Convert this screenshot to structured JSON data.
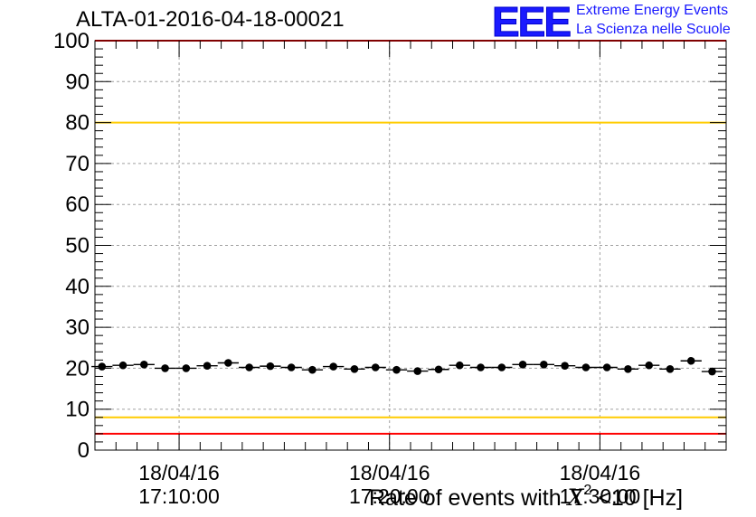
{
  "header": {
    "title": "ALTA-01-2016-04-18-00021",
    "logo_text": "EEE",
    "logo_line1": "Extreme Energy Events",
    "logo_line2": "La Scienza nelle Scuole"
  },
  "colors": {
    "upper_limit_line": "#ff0000",
    "lower_limit_line": "#ff0000",
    "upper_warning_line": "#ffcc00",
    "lower_warning_line": "#ffcc00",
    "markers": "#000000",
    "logo": "#1a1aff"
  },
  "chart_data": {
    "type": "scatter",
    "title": "ALTA-01-2016-04-18-00021",
    "xlabel_prefix": "Rate of events with ",
    "xlabel_symbol": "X",
    "xlabel_exp": "2",
    "xlabel_suffix": " <10 [Hz]",
    "ylabel": "",
    "ylim": [
      0,
      100
    ],
    "yticks": [
      0,
      10,
      20,
      30,
      40,
      50,
      60,
      70,
      80,
      90,
      100
    ],
    "xlim": [
      "17:06:00",
      "17:36:00"
    ],
    "xticks": [
      {
        "time": "17:10:00",
        "date": "18/04/16"
      },
      {
        "time": "17:20:00",
        "date": "18/04/16"
      },
      {
        "time": "17:30:00",
        "date": "18/04/16"
      }
    ],
    "reference_lines": [
      {
        "y": 100,
        "color": "#ff0000"
      },
      {
        "y": 80,
        "color": "#ffcc00"
      },
      {
        "y": 8,
        "color": "#ffcc00"
      },
      {
        "y": 4,
        "color": "#ff0000"
      }
    ],
    "grid": true,
    "points": [
      {
        "x": "17:06:20",
        "y": 20.4
      },
      {
        "x": "17:07:20",
        "y": 20.7
      },
      {
        "x": "17:08:20",
        "y": 20.9
      },
      {
        "x": "17:09:20",
        "y": 20.0
      },
      {
        "x": "17:10:20",
        "y": 20.0
      },
      {
        "x": "17:11:20",
        "y": 20.6
      },
      {
        "x": "17:12:20",
        "y": 21.3
      },
      {
        "x": "17:13:20",
        "y": 20.2
      },
      {
        "x": "17:14:20",
        "y": 20.5
      },
      {
        "x": "17:15:20",
        "y": 20.2
      },
      {
        "x": "17:16:20",
        "y": 19.6
      },
      {
        "x": "17:17:20",
        "y": 20.4
      },
      {
        "x": "17:18:20",
        "y": 19.8
      },
      {
        "x": "17:19:20",
        "y": 20.2
      },
      {
        "x": "17:20:20",
        "y": 19.6
      },
      {
        "x": "17:21:20",
        "y": 19.3
      },
      {
        "x": "17:22:20",
        "y": 19.7
      },
      {
        "x": "17:23:20",
        "y": 20.7
      },
      {
        "x": "17:24:20",
        "y": 20.2
      },
      {
        "x": "17:25:20",
        "y": 20.2
      },
      {
        "x": "17:26:20",
        "y": 20.9
      },
      {
        "x": "17:27:20",
        "y": 20.9
      },
      {
        "x": "17:28:20",
        "y": 20.6
      },
      {
        "x": "17:29:20",
        "y": 20.2
      },
      {
        "x": "17:30:20",
        "y": 20.2
      },
      {
        "x": "17:31:20",
        "y": 19.8
      },
      {
        "x": "17:32:20",
        "y": 20.7
      },
      {
        "x": "17:33:20",
        "y": 19.8
      },
      {
        "x": "17:34:20",
        "y": 21.8
      },
      {
        "x": "17:35:20",
        "y": 19.2
      }
    ]
  }
}
